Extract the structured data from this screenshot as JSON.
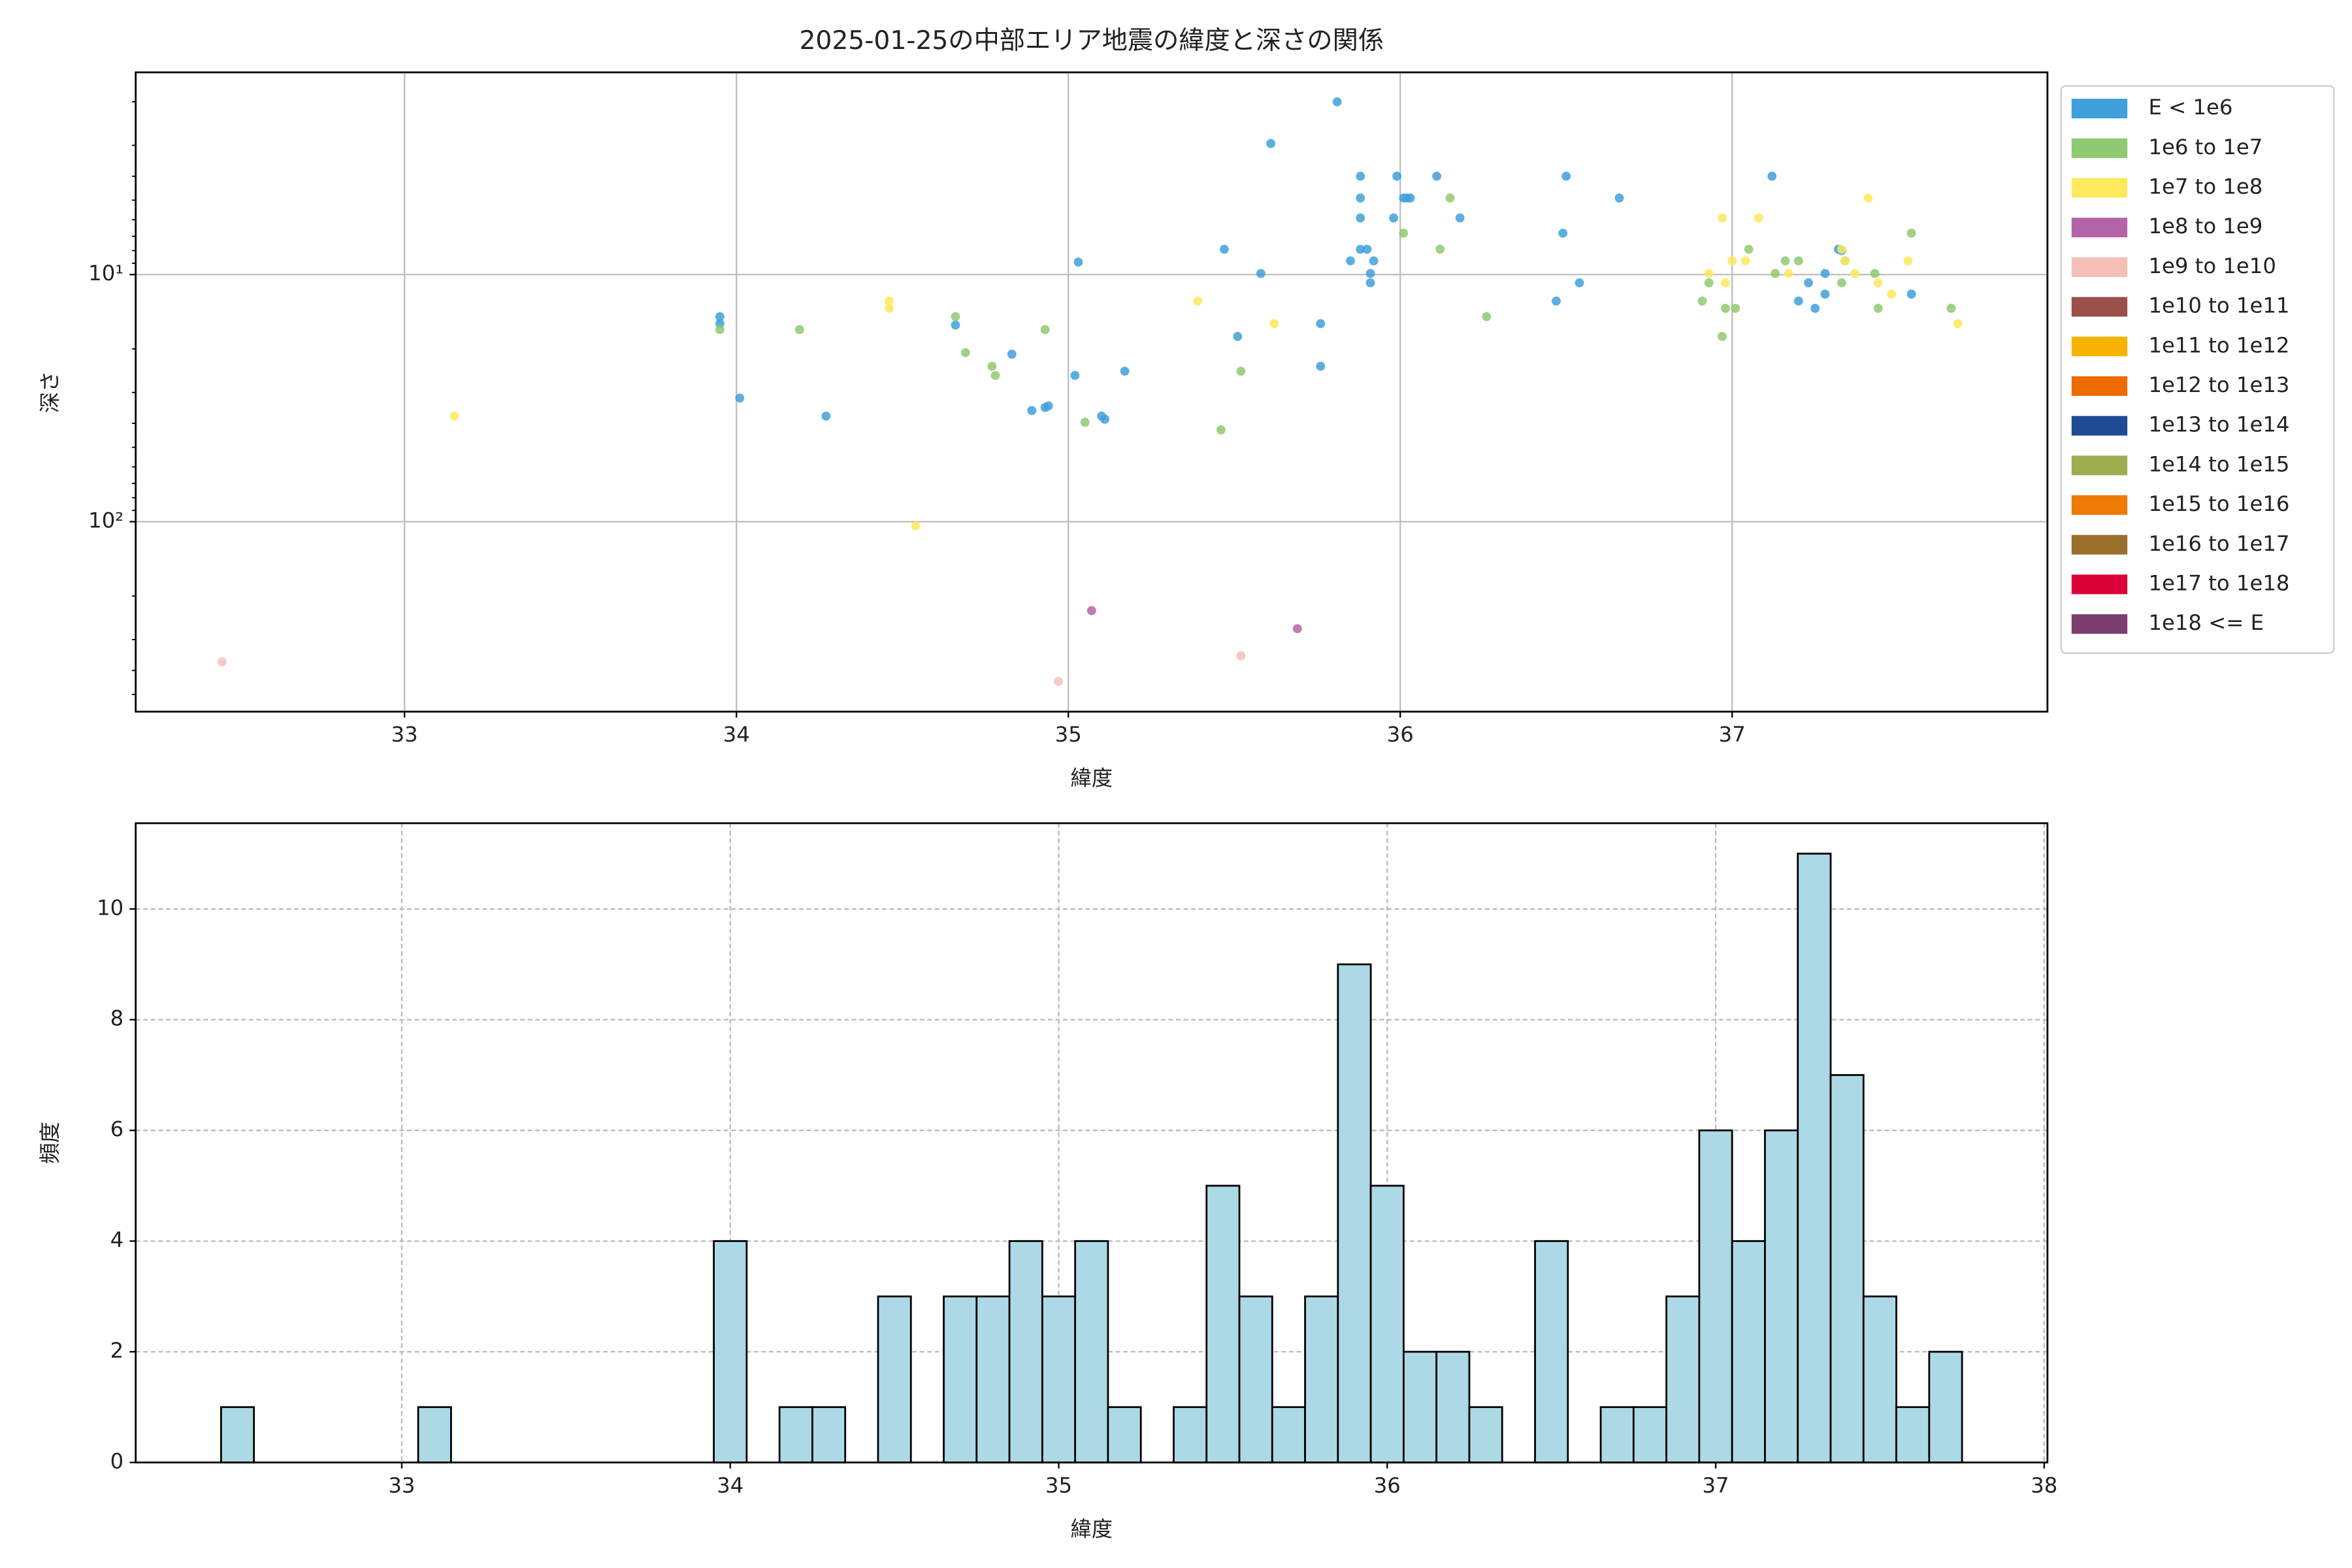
{
  "chart_data": [
    {
      "type": "scatter",
      "title": "2025-01-25の中部エリア地震の緯度と深さの関係",
      "xlabel": "緯度",
      "ylabel": "深さ",
      "xlim": [
        32.19,
        37.95
      ],
      "xticks": [
        33,
        34,
        35,
        36,
        37
      ],
      "ylim": [
        1.52,
        587
      ],
      "log_y": true,
      "y_inverted": true,
      "yticks": [
        {
          "value": 10,
          "label": "10¹"
        },
        {
          "value": 100,
          "label": "10²"
        }
      ],
      "yminor_ticks": [
        2,
        3,
        4,
        5,
        6,
        7,
        8,
        9,
        20,
        30,
        40,
        50,
        60,
        70,
        80,
        90,
        200,
        300,
        400,
        500
      ],
      "grid": true,
      "legend": "outside-upper-right",
      "series": [
        {
          "name": "E < 1e6",
          "color": "#3fa0db",
          "x": [
            33.95,
            33.95,
            34.01,
            34.27,
            34.66,
            34.83,
            34.89,
            34.93,
            34.94,
            35.02,
            35.03,
            35.1,
            35.11,
            35.17,
            35.47,
            35.51,
            35.58,
            35.61,
            35.76,
            35.76,
            35.81,
            35.85,
            35.88,
            35.88,
            35.88,
            35.88,
            35.9,
            35.91,
            35.91,
            35.92,
            35.98,
            35.99,
            36.01,
            36.02,
            36.03,
            36.18,
            36.11,
            36.47,
            36.49,
            36.5,
            36.54,
            36.66,
            37.12,
            37.2,
            37.23,
            37.25,
            37.28,
            37.28,
            37.32,
            37.33,
            37.54
          ],
          "values": [
            14.8,
            15.8,
            31.6,
            37.4,
            16,
            21,
            35.5,
            34.5,
            34,
            25.6,
            8.9,
            37.4,
            38.5,
            24.6,
            7.9,
            17.8,
            9.9,
            2.95,
            15.8,
            23.5,
            2.0,
            8.8,
            4.0,
            4.9,
            5.9,
            7.9,
            7.9,
            10.8,
            9.9,
            8.8,
            5.9,
            4.0,
            4.9,
            4.9,
            4.9,
            5.9,
            4.0,
            12.8,
            6.8,
            4.0,
            10.8,
            4.9,
            4.0,
            12.8,
            10.8,
            13.7,
            12.0,
            9.9,
            7.9,
            8.0,
            12.0
          ]
        },
        {
          "name": "1e6 to 1e7",
          "color": "#8fc970",
          "x": [
            33.95,
            34.19,
            34.66,
            34.69,
            34.77,
            34.78,
            34.93,
            35.05,
            35.46,
            35.52,
            36.01,
            36.12,
            36.15,
            36.26,
            36.91,
            36.93,
            36.97,
            36.98,
            37.01,
            37.05,
            37.13,
            37.16,
            37.2,
            37.33,
            37.34,
            37.43,
            37.44,
            37.54,
            37.66
          ],
          "values": [
            16.7,
            16.7,
            14.8,
            20.7,
            23.5,
            25.6,
            16.7,
            39.6,
            42.5,
            24.6,
            6.8,
            7.9,
            4.9,
            14.8,
            12.8,
            10.8,
            17.8,
            13.7,
            13.7,
            7.9,
            9.9,
            8.8,
            8.8,
            10.8,
            8.8,
            9.9,
            13.7,
            6.8,
            13.7
          ]
        },
        {
          "name": "1e7 to 1e8",
          "color": "#fde95c",
          "x": [
            33.15,
            34.46,
            34.46,
            34.54,
            35.39,
            35.62,
            36.93,
            36.97,
            36.98,
            37.0,
            37.04,
            37.08,
            37.17,
            37.33,
            37.34,
            37.41,
            37.37,
            37.44,
            37.48,
            37.53,
            37.68
          ],
          "values": [
            37.4,
            12.8,
            13.7,
            104,
            12.8,
            15.8,
            9.9,
            5.9,
            10.8,
            8.8,
            8.8,
            5.9,
            9.9,
            7.9,
            8.8,
            4.9,
            9.9,
            10.8,
            12.0,
            8.8,
            15.8
          ]
        },
        {
          "name": "1e8 to 1e9",
          "color": "#b364a8",
          "x": [
            35.07,
            35.69
          ],
          "values": [
            229,
            271
          ]
        },
        {
          "name": "1e9 to 1e10",
          "color": "#f4bfb7",
          "x": [
            32.45,
            34.97,
            35.52
          ],
          "values": [
            369,
            443,
            349
          ]
        },
        {
          "name": "1e10 to 1e11",
          "color": "#9a5048",
          "x": [],
          "values": []
        },
        {
          "name": "1e11 to 1e12",
          "color": "#f6b300",
          "x": [],
          "values": []
        },
        {
          "name": "1e12 to 1e13",
          "color": "#ee6b00",
          "x": [],
          "values": []
        },
        {
          "name": "1e13 to 1e14",
          "color": "#1e4b94",
          "x": [],
          "values": []
        },
        {
          "name": "1e14 to 1e15",
          "color": "#9fad50",
          "x": [],
          "values": []
        },
        {
          "name": "1e15 to 1e16",
          "color": "#ee7b08",
          "x": [],
          "values": []
        },
        {
          "name": "1e16 to 1e17",
          "color": "#9a6f2a",
          "x": [],
          "values": []
        },
        {
          "name": "1e17 to 1e18",
          "color": "#dc0038",
          "x": [],
          "values": []
        },
        {
          "name": "1e18 <= E",
          "color": "#7b3e6e",
          "x": [],
          "values": []
        }
      ]
    },
    {
      "type": "histogram",
      "xlabel": "緯度",
      "ylabel": "頻度",
      "xlim": [
        32.19,
        38.01
      ],
      "xticks": [
        33,
        34,
        35,
        36,
        37,
        38
      ],
      "ylim": [
        0,
        11.55
      ],
      "yticks": [
        0,
        2,
        4,
        6,
        8,
        10
      ],
      "grid": true,
      "grid_style": "dashed",
      "color": "#add8e6",
      "edgecolor": "#000000",
      "bins": [
        32.45,
        32.55,
        32.65,
        32.75,
        32.85,
        32.95,
        33.05,
        33.15,
        33.25,
        33.35,
        33.45,
        33.55,
        33.65,
        33.75,
        33.85,
        33.95,
        34.05,
        34.15,
        34.25,
        34.35,
        34.45,
        34.55,
        34.65,
        34.75,
        34.85,
        34.95,
        35.05,
        35.15,
        35.25,
        35.35,
        35.45,
        35.55,
        35.65,
        35.75,
        35.85,
        35.95,
        36.05,
        36.15,
        36.25,
        36.35,
        36.45,
        36.55,
        36.65,
        36.75,
        36.85,
        36.95,
        37.05,
        37.15,
        37.25,
        37.35,
        37.45,
        37.55,
        37.65,
        37.75
      ],
      "values": [
        1,
        0,
        0,
        0,
        0,
        0,
        1,
        0,
        0,
        0,
        0,
        0,
        0,
        0,
        0,
        4,
        0,
        1,
        1,
        0,
        3,
        0,
        3,
        3,
        4,
        3,
        4,
        1,
        0,
        1,
        5,
        3,
        1,
        3,
        9,
        5,
        2,
        2,
        1,
        0,
        4,
        0,
        1,
        1,
        3,
        6,
        4,
        6,
        11,
        7,
        3,
        1,
        2
      ]
    }
  ]
}
